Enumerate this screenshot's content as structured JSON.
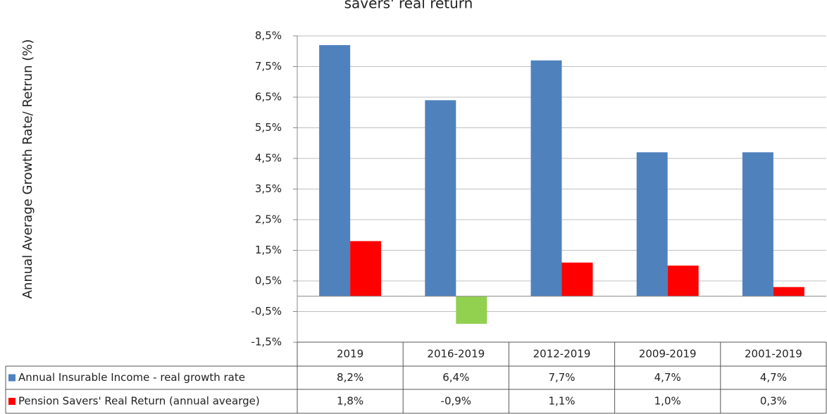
{
  "chart_data": {
    "type": "bar",
    "title": "savers' real return",
    "y_label": "Annual Average Growth Rate/ Retrun (%)",
    "categories": [
      "2019",
      "2016-2019",
      "2012-2019",
      "2009-2019",
      "2001-2019"
    ],
    "series": [
      {
        "name": "Annual Insurable Income - real growth rate",
        "color": "#4f81bd",
        "values": [
          8.2,
          6.4,
          7.7,
          4.7,
          4.7
        ],
        "value_labels": [
          "8,2%",
          "6,4%",
          "7,7%",
          "4,7%",
          "4,7%"
        ]
      },
      {
        "name": "Pension Savers' Real Return (annual avearge)",
        "color": "#ff0000",
        "negative_color": "#92d050",
        "values": [
          1.8,
          -0.9,
          1.1,
          1.0,
          0.3
        ],
        "value_labels": [
          "1,8%",
          "-0,9%",
          "1,1%",
          "1,0%",
          "0,3%"
        ]
      }
    ],
    "ylim": [
      -1.5,
      8.5
    ],
    "yticks": [
      {
        "value": -1.5,
        "label": "-1,5%"
      },
      {
        "value": -0.5,
        "label": "-0,5%"
      },
      {
        "value": 0.5,
        "label": "0,5%"
      },
      {
        "value": 1.5,
        "label": "1,5%"
      },
      {
        "value": 2.5,
        "label": "2,5%"
      },
      {
        "value": 3.5,
        "label": "3,5%"
      },
      {
        "value": 4.5,
        "label": "4,5%"
      },
      {
        "value": 5.5,
        "label": "5,5%"
      },
      {
        "value": 6.5,
        "label": "6,5%"
      },
      {
        "value": 7.5,
        "label": "7,5%"
      },
      {
        "value": 8.5,
        "label": "8,5%"
      }
    ],
    "grid": true
  }
}
